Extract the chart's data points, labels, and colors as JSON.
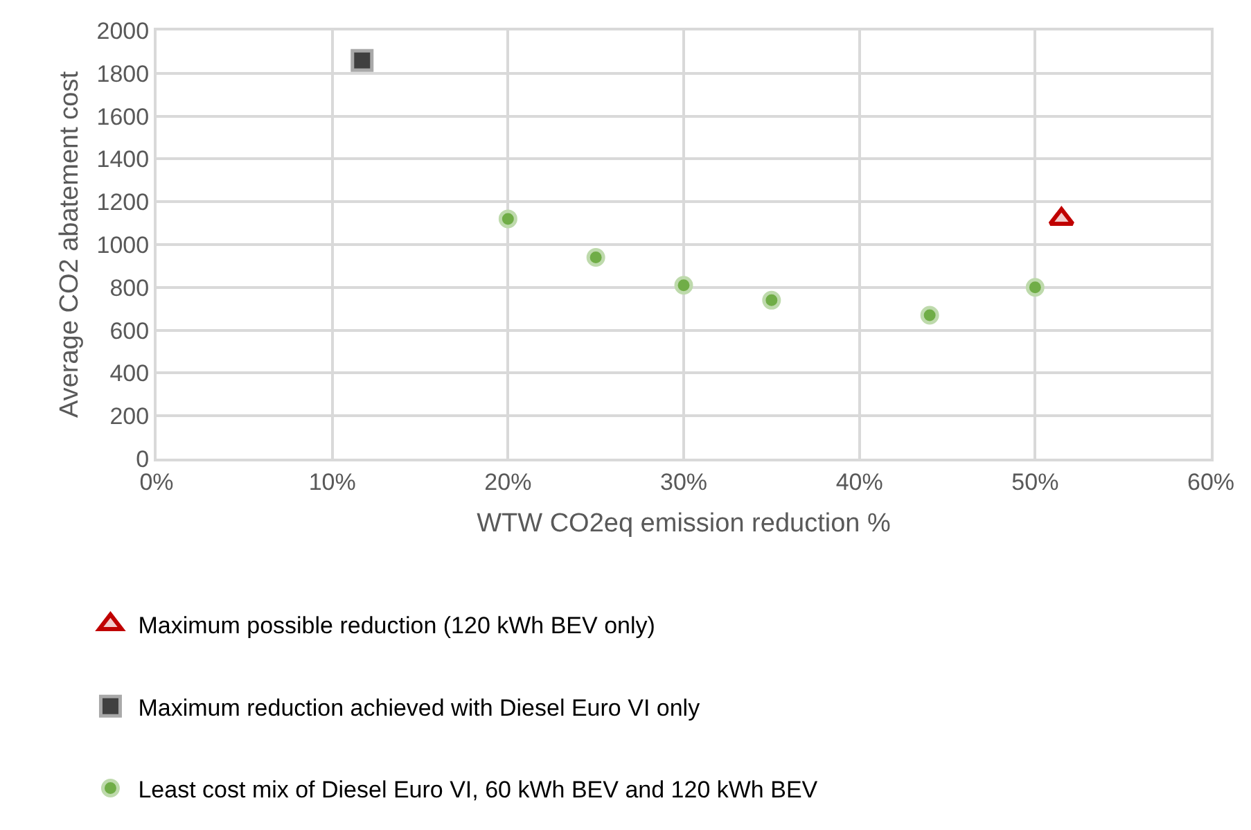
{
  "chart_data": {
    "type": "scatter",
    "xlabel": "WTW CO2eq emission reduction %",
    "ylabel": "Average CO2 abatement cost",
    "xlim": [
      0,
      60
    ],
    "xticks": [
      {
        "value": 0,
        "label": "0%"
      },
      {
        "value": 10,
        "label": "10%"
      },
      {
        "value": 20,
        "label": "20%"
      },
      {
        "value": 30,
        "label": "30%"
      },
      {
        "value": 40,
        "label": "40%"
      },
      {
        "value": 50,
        "label": "50%"
      },
      {
        "value": 60,
        "label": "60%"
      }
    ],
    "ylim": [
      0,
      2000
    ],
    "yticks": [
      0,
      200,
      400,
      600,
      800,
      1000,
      1200,
      1400,
      1600,
      1800,
      2000
    ],
    "grid": true,
    "legend": "bottom",
    "series": [
      {
        "name": "Maximum possible reduction (120 kWh BEV only)",
        "color": "#c00000",
        "marker": "triangle",
        "x": [
          51.5
        ],
        "values": [
          1120
        ]
      },
      {
        "name": "Maximum reduction achieved with Diesel Euro VI only",
        "color": "#404040",
        "marker": "square",
        "x": [
          11.7
        ],
        "values": [
          1860
        ]
      },
      {
        "name": "Least cost mix of Diesel Euro VI, 60 kWh BEV and 120 kWh BEV",
        "color": "#70ad47",
        "marker": "circle",
        "x": [
          20,
          25,
          30,
          35,
          44,
          50
        ],
        "values": [
          1120,
          940,
          810,
          740,
          670,
          800
        ]
      }
    ]
  }
}
